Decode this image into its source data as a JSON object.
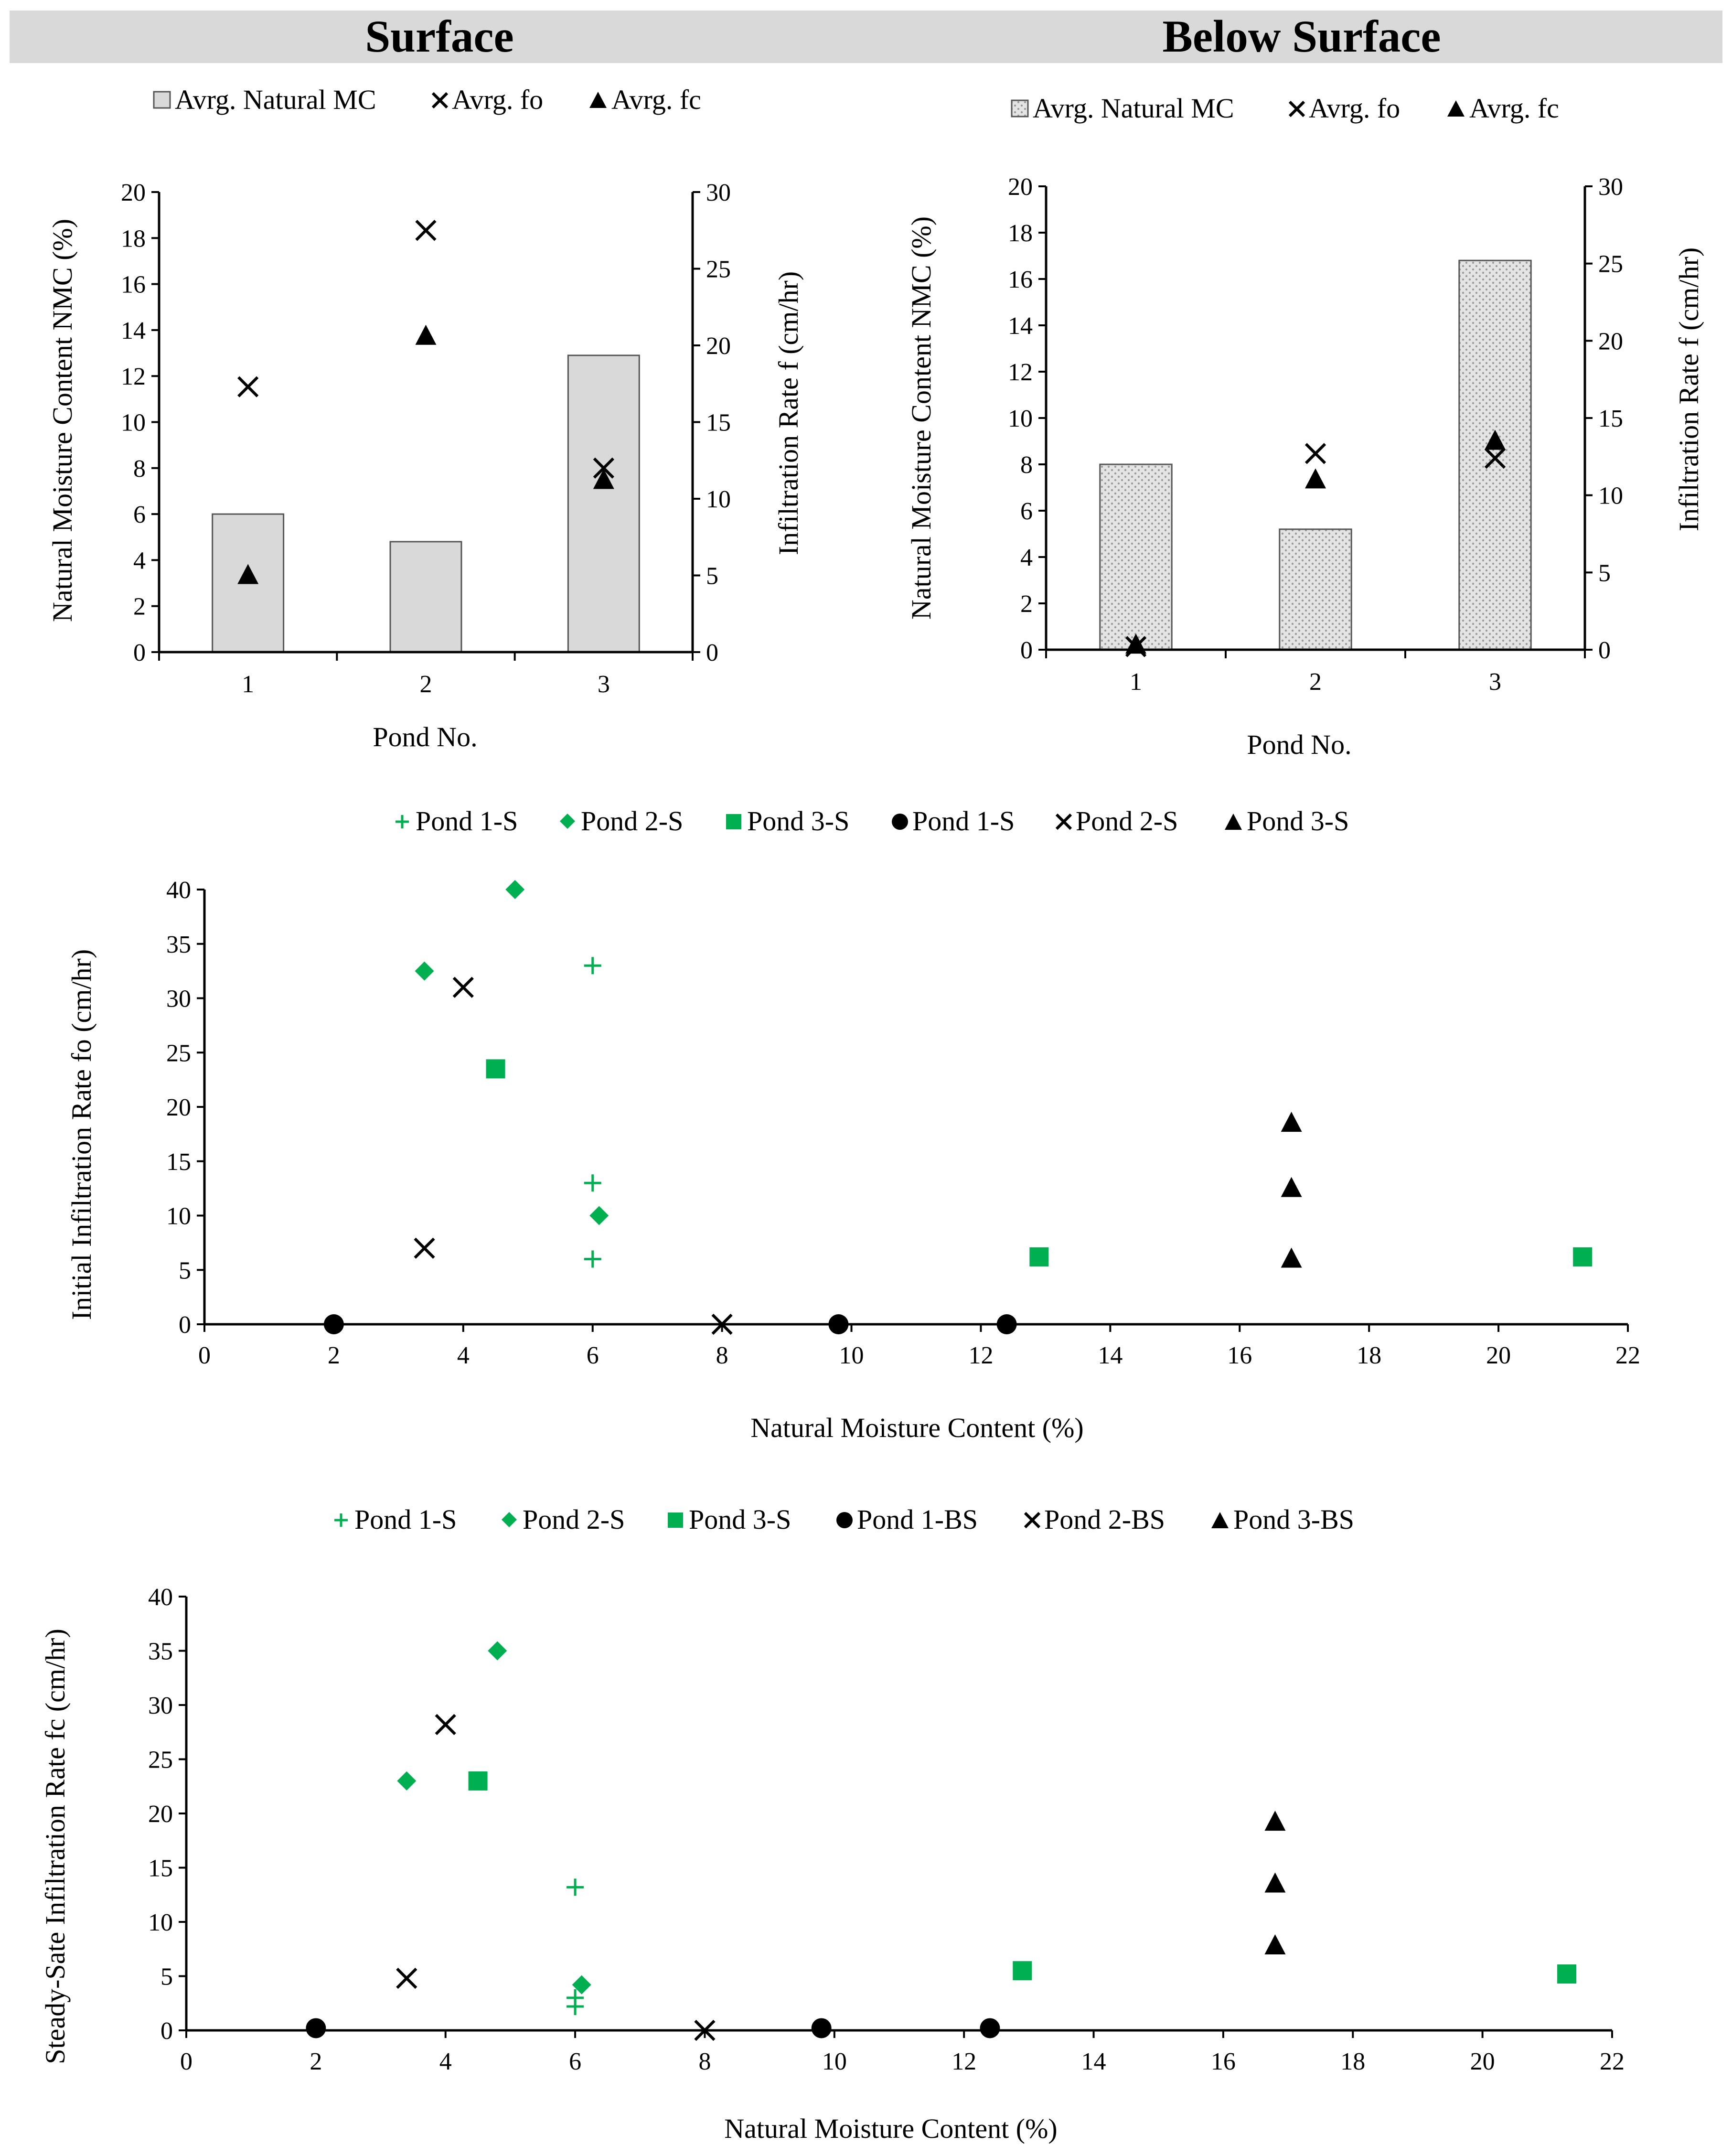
{
  "headers": {
    "left": "Surface",
    "right": "Below Surface"
  },
  "chart_data": [
    {
      "id": "surface",
      "type": "bar",
      "title": "Surface",
      "categories": [
        "1",
        "2",
        "3"
      ],
      "xlabel": "Pond No.",
      "ylabel": "Natural Moisture Content NMC (%)",
      "y2label": "Infiltration Rate f (cm/hr)",
      "ylim": [
        0,
        20
      ],
      "yticks": [
        0,
        2,
        4,
        6,
        8,
        10,
        12,
        14,
        16,
        18,
        20
      ],
      "y2lim": [
        0,
        30
      ],
      "y2ticks": [
        0,
        5,
        10,
        15,
        20,
        25,
        30
      ],
      "legend": [
        "Avrg. Natural MC",
        "Avrg. fo",
        "Avrg. fc"
      ],
      "series": [
        {
          "name": "Avrg. Natural MC",
          "type": "bar",
          "axis": "left",
          "values": [
            6.0,
            4.8,
            12.9
          ]
        },
        {
          "name": "Avrg. fo",
          "type": "scatter",
          "marker": "x",
          "axis": "right",
          "values": [
            17.3,
            27.5,
            12.0
          ]
        },
        {
          "name": "Avrg. fc",
          "type": "scatter",
          "marker": "triangle",
          "axis": "right",
          "values": [
            5.0,
            20.6,
            11.2
          ]
        }
      ]
    },
    {
      "id": "below",
      "type": "bar",
      "title": "Below Surface",
      "categories": [
        "1",
        "2",
        "3"
      ],
      "xlabel": "Pond No.",
      "ylabel": "Natural Moisture Content NMC (%)",
      "y2label": "Infiltration Rate f (cm/hr)",
      "ylim": [
        0,
        20
      ],
      "yticks": [
        0,
        2,
        4,
        6,
        8,
        10,
        12,
        14,
        16,
        18,
        20
      ],
      "y2lim": [
        0,
        30
      ],
      "y2ticks": [
        0,
        5,
        10,
        15,
        20,
        25,
        30
      ],
      "legend": [
        "Avrg. Natural MC",
        "Avrg. fo",
        "Avrg. fc"
      ],
      "series": [
        {
          "name": "Avrg. Natural MC",
          "type": "bar",
          "axis": "left",
          "values": [
            8.0,
            5.2,
            16.8
          ]
        },
        {
          "name": "Avrg. fo",
          "type": "scatter",
          "marker": "x",
          "axis": "right",
          "values": [
            0.2,
            12.7,
            12.4
          ]
        },
        {
          "name": "Avrg. fc",
          "type": "scatter",
          "marker": "triangle",
          "axis": "right",
          "values": [
            0.3,
            11.0,
            13.5
          ]
        }
      ]
    },
    {
      "id": "initial",
      "type": "scatter",
      "xlabel": "Natural Moisture Content (%)",
      "ylabel": "Initial Infiltration Rate fo (cm/hr)",
      "xlim": [
        0,
        22
      ],
      "xticks": [
        0,
        2,
        4,
        6,
        8,
        10,
        12,
        14,
        16,
        18,
        20,
        22
      ],
      "ylim": [
        0,
        40
      ],
      "yticks": [
        0,
        5,
        10,
        15,
        20,
        25,
        30,
        35,
        40
      ],
      "legend": [
        "Pond 1-S",
        "Pond 2-S",
        "Pond 3-S",
        "Pond 1-S",
        "Pond 2-S",
        "Pond 3-S"
      ],
      "series": [
        {
          "name": "Pond 1-S",
          "marker": "plus",
          "color": "#00b050",
          "points": [
            [
              6.0,
              33
            ],
            [
              6.0,
              13
            ],
            [
              6.0,
              6
            ]
          ]
        },
        {
          "name": "Pond 2-S",
          "marker": "diamond",
          "color": "#00b050",
          "points": [
            [
              3.4,
              32.5
            ],
            [
              4.8,
              40
            ],
            [
              6.1,
              10
            ]
          ]
        },
        {
          "name": "Pond 3-S",
          "marker": "square",
          "color": "#00b050",
          "points": [
            [
              4.5,
              23.5
            ],
            [
              12.9,
              6.2
            ],
            [
              21.3,
              6.2
            ]
          ]
        },
        {
          "name": "Pond 1-S",
          "marker": "circle",
          "color": "#000000",
          "points": [
            [
              2.0,
              0
            ],
            [
              9.8,
              0
            ],
            [
              12.4,
              0
            ]
          ]
        },
        {
          "name": "Pond 2-S",
          "marker": "x",
          "color": "#000000",
          "points": [
            [
              4.0,
              31
            ],
            [
              3.4,
              7
            ],
            [
              8.0,
              0
            ]
          ]
        },
        {
          "name": "Pond 3-S",
          "marker": "triangle",
          "color": "#000000",
          "points": [
            [
              16.8,
              18.5
            ],
            [
              16.8,
              12.5
            ],
            [
              16.8,
              6
            ]
          ]
        }
      ]
    },
    {
      "id": "steady",
      "type": "scatter",
      "xlabel": "Natural Moisture Content (%)",
      "ylabel": "Steady-Sate Infiltration Rate fc (cm/hr)",
      "xlim": [
        0,
        22
      ],
      "xticks": [
        0,
        2,
        4,
        6,
        8,
        10,
        12,
        14,
        16,
        18,
        20,
        22
      ],
      "ylim": [
        0,
        40
      ],
      "yticks": [
        0,
        5,
        10,
        15,
        20,
        25,
        30,
        35,
        40
      ],
      "legend": [
        "Pond 1-S",
        "Pond 2-S",
        "Pond 3-S",
        "Pond 1-BS",
        "Pond 2-BS",
        "Pond 3-BS"
      ],
      "series": [
        {
          "name": "Pond 1-S",
          "marker": "plus",
          "color": "#00b050",
          "points": [
            [
              6.0,
              13.2
            ],
            [
              6.0,
              3
            ],
            [
              6.0,
              2.2
            ]
          ]
        },
        {
          "name": "Pond 2-S",
          "marker": "diamond",
          "color": "#00b050",
          "points": [
            [
              3.4,
              23
            ],
            [
              4.8,
              35
            ],
            [
              6.1,
              4.2
            ]
          ]
        },
        {
          "name": "Pond 3-S",
          "marker": "square",
          "color": "#00b050",
          "points": [
            [
              4.5,
              23
            ],
            [
              12.9,
              5.5
            ],
            [
              21.3,
              5.2
            ]
          ]
        },
        {
          "name": "Pond 1-BS",
          "marker": "circle",
          "color": "#000000",
          "points": [
            [
              2.0,
              0.2
            ],
            [
              9.8,
              0.2
            ],
            [
              12.4,
              0.2
            ]
          ]
        },
        {
          "name": "Pond 2-BS",
          "marker": "x",
          "color": "#000000",
          "points": [
            [
              4.0,
              28.2
            ],
            [
              3.4,
              4.8
            ],
            [
              8.0,
              0
            ]
          ]
        },
        {
          "name": "Pond 3-BS",
          "marker": "triangle",
          "color": "#000000",
          "points": [
            [
              16.8,
              19.2
            ],
            [
              16.8,
              13.5
            ],
            [
              16.8,
              7.8
            ]
          ]
        }
      ]
    }
  ]
}
